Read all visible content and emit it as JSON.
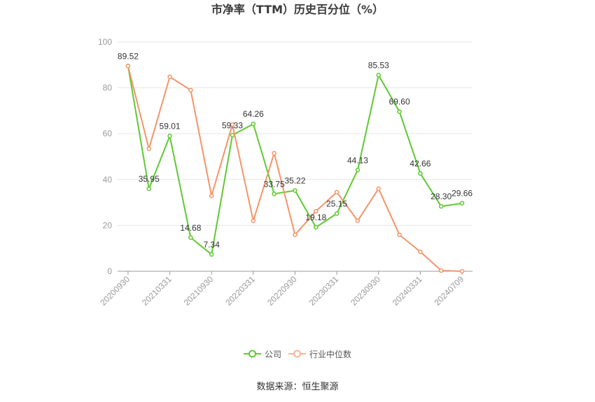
{
  "source": "数据来源：恒生聚源",
  "chart_data": {
    "type": "line",
    "title": "市净率（TTM）历史百分位（%）",
    "categories": [
      "20200930",
      "",
      "20210331",
      "",
      "20210930",
      "",
      "20220331",
      "",
      "20220930",
      "",
      "20230331",
      "",
      "20230930",
      "",
      "20240331",
      "",
      "20240709"
    ],
    "ylim": [
      0,
      100
    ],
    "yticks": [
      0,
      20,
      40,
      60,
      80,
      100
    ],
    "grid": true,
    "legend_position": "bottom",
    "series": [
      {
        "name": "公司",
        "color": "#5fc932",
        "data_labels": true,
        "values": [
          89.52,
          35.95,
          59.01,
          14.68,
          7.34,
          59.33,
          64.26,
          33.75,
          35.22,
          19.18,
          25.15,
          44.13,
          85.53,
          69.6,
          42.66,
          28.3,
          29.66
        ]
      },
      {
        "name": "行业中位数",
        "color": "#f4956a",
        "data_labels": false,
        "values": [
          89.5,
          53.4,
          84.8,
          79.0,
          32.9,
          64.0,
          22.0,
          51.5,
          15.9,
          26.2,
          34.5,
          22.0,
          36.0,
          15.9,
          8.5,
          0.3,
          0.0
        ]
      }
    ]
  }
}
